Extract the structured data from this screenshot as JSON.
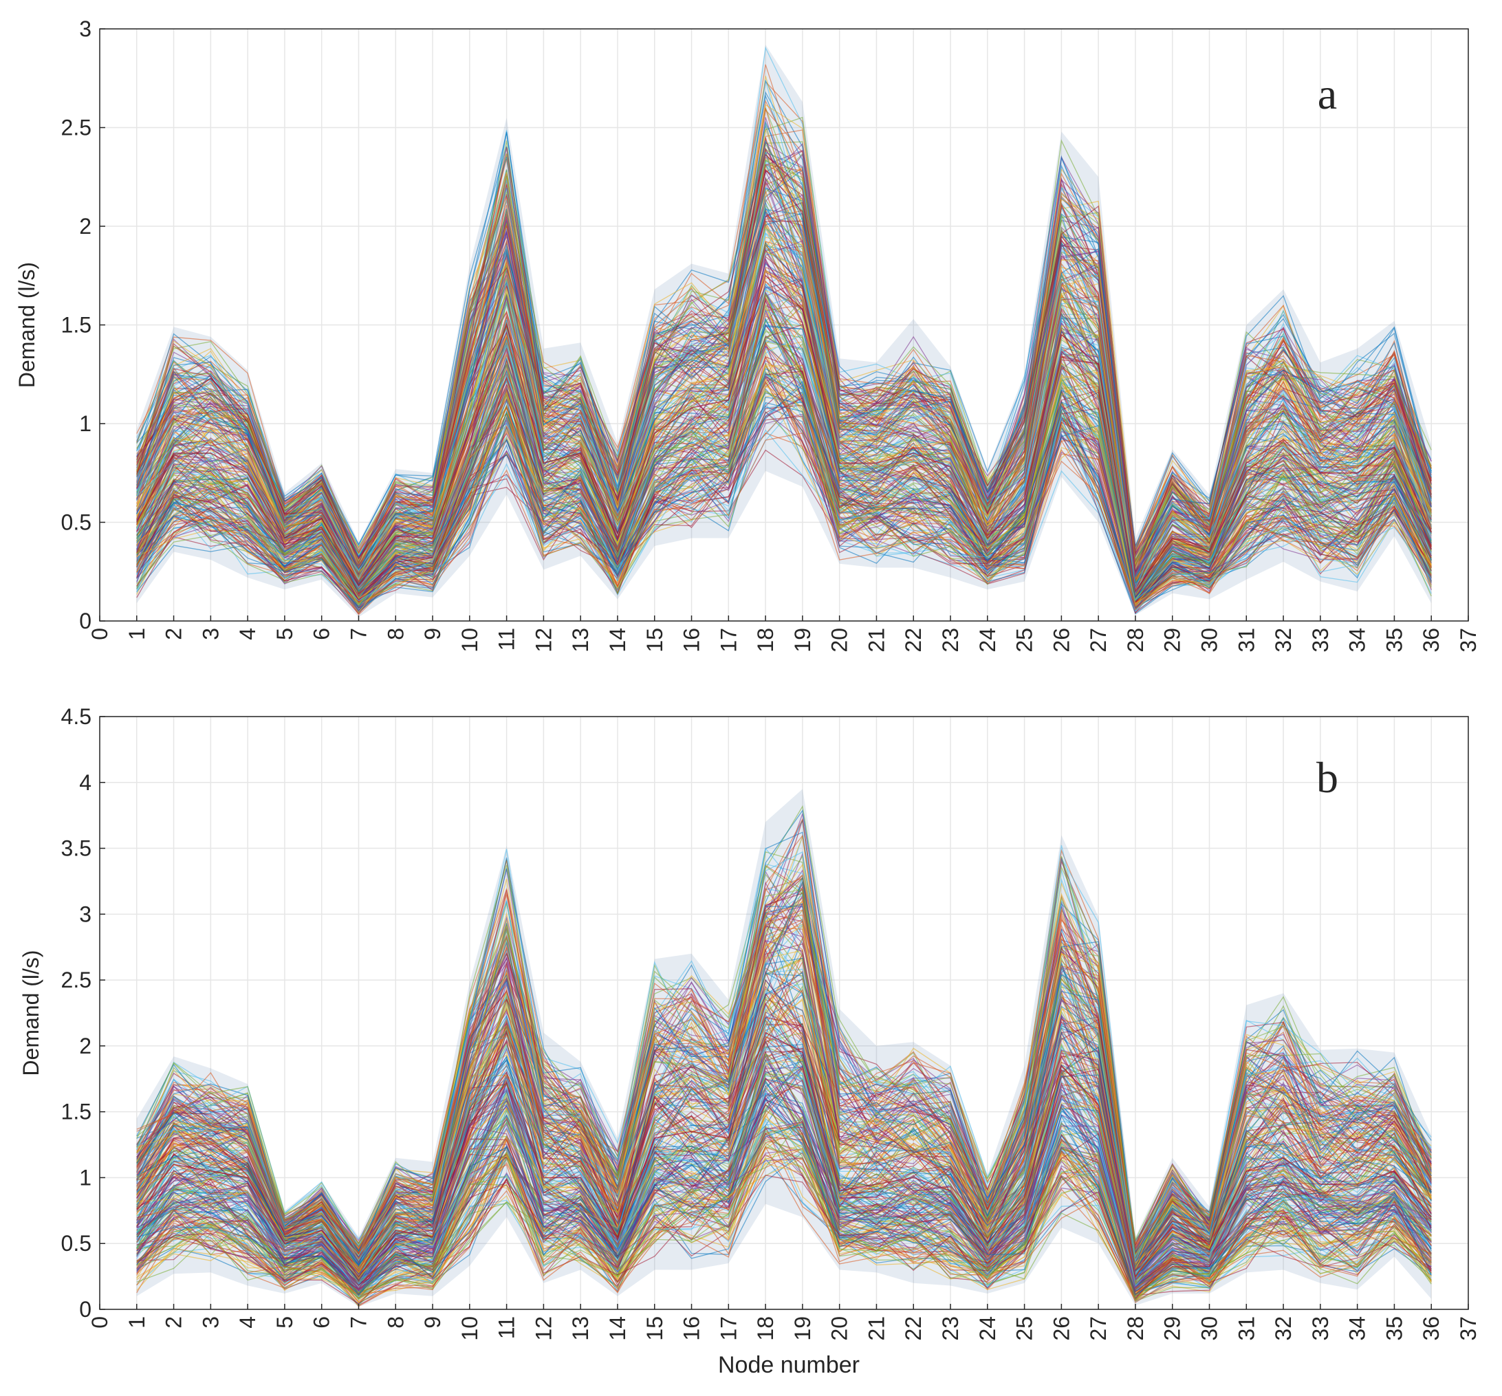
{
  "figure": {
    "xlabel": "Node number"
  },
  "chart_data": [
    {
      "type": "line",
      "panel_label": "a",
      "ylabel": "Demand (l/s)",
      "xlim": [
        0,
        37
      ],
      "ylim": [
        0,
        3
      ],
      "x_ticks": [
        0,
        1,
        2,
        3,
        4,
        5,
        6,
        7,
        8,
        9,
        10,
        11,
        12,
        13,
        14,
        15,
        16,
        17,
        18,
        19,
        20,
        21,
        22,
        23,
        24,
        25,
        26,
        27,
        28,
        29,
        30,
        31,
        32,
        33,
        34,
        35,
        36,
        37
      ],
      "y_ticks": [
        "0",
        "0.5",
        "1",
        "1.5",
        "2",
        "2.5",
        "3"
      ],
      "y_tick_values": [
        0,
        0.5,
        1,
        1.5,
        2,
        2.5,
        3
      ],
      "grid": true,
      "x": [
        1,
        2,
        3,
        4,
        5,
        6,
        7,
        8,
        9,
        10,
        11,
        12,
        13,
        14,
        15,
        16,
        17,
        18,
        19,
        20,
        21,
        22,
        23,
        24,
        25,
        26,
        27,
        28,
        29,
        30,
        31,
        32,
        33,
        34,
        35,
        36
      ],
      "envelope_max": [
        0.97,
        1.49,
        1.44,
        1.27,
        0.65,
        0.8,
        0.4,
        0.77,
        0.75,
        1.8,
        2.55,
        1.38,
        1.41,
        0.9,
        1.68,
        1.81,
        1.76,
        2.92,
        2.63,
        1.33,
        1.31,
        1.53,
        1.29,
        0.77,
        1.25,
        2.48,
        2.25,
        0.42,
        0.87,
        0.64,
        1.5,
        1.68,
        1.31,
        1.38,
        1.52,
        0.89
      ],
      "median": [
        0.5,
        0.85,
        0.85,
        0.75,
        0.42,
        0.52,
        0.18,
        0.43,
        0.42,
        0.98,
        1.5,
        0.8,
        0.85,
        0.42,
        0.95,
        1.08,
        1.12,
        1.75,
        1.58,
        0.8,
        0.8,
        0.85,
        0.78,
        0.42,
        0.62,
        1.45,
        1.3,
        0.15,
        0.42,
        0.35,
        0.8,
        0.92,
        0.75,
        0.75,
        0.88,
        0.45
      ],
      "envelope_min": [
        0.09,
        0.35,
        0.31,
        0.22,
        0.16,
        0.21,
        0.02,
        0.14,
        0.12,
        0.33,
        0.64,
        0.26,
        0.33,
        0.11,
        0.38,
        0.42,
        0.42,
        0.76,
        0.68,
        0.29,
        0.27,
        0.27,
        0.22,
        0.16,
        0.2,
        0.73,
        0.5,
        0.03,
        0.14,
        0.11,
        0.21,
        0.3,
        0.2,
        0.15,
        0.43,
        0.09
      ],
      "series_count_note": "many simulated demand scenarios (multicolored lines)"
    },
    {
      "type": "line",
      "panel_label": "b",
      "ylabel": "Demand (l/s)",
      "xlim": [
        0,
        37
      ],
      "ylim": [
        0,
        4.5
      ],
      "x_ticks": [
        0,
        1,
        2,
        3,
        4,
        5,
        6,
        7,
        8,
        9,
        10,
        11,
        12,
        13,
        14,
        15,
        16,
        17,
        18,
        19,
        20,
        21,
        22,
        23,
        24,
        25,
        26,
        27,
        28,
        29,
        30,
        31,
        32,
        33,
        34,
        35,
        36,
        37
      ],
      "y_ticks": [
        "0",
        "0.5",
        "1",
        "1.5",
        "2",
        "2.5",
        "3",
        "3.5",
        "4",
        "4.5"
      ],
      "y_tick_values": [
        0,
        0.5,
        1,
        1.5,
        2,
        2.5,
        3,
        3.5,
        4,
        4.5
      ],
      "grid": true,
      "x": [
        1,
        2,
        3,
        4,
        5,
        6,
        7,
        8,
        9,
        10,
        11,
        12,
        13,
        14,
        15,
        16,
        17,
        18,
        19,
        20,
        21,
        22,
        23,
        24,
        25,
        26,
        27,
        28,
        29,
        30,
        31,
        32,
        33,
        34,
        35,
        36
      ],
      "envelope_max": [
        1.45,
        1.92,
        1.83,
        1.71,
        0.75,
        0.97,
        0.55,
        1.15,
        1.12,
        2.48,
        3.52,
        2.1,
        1.88,
        1.3,
        2.66,
        2.7,
        2.35,
        3.7,
        3.95,
        2.28,
        2.0,
        2.03,
        1.85,
        1.02,
        1.85,
        3.6,
        2.98,
        0.55,
        1.15,
        0.78,
        2.31,
        2.4,
        1.97,
        1.98,
        1.95,
        1.32
      ],
      "median": [
        0.75,
        1.1,
        1.05,
        1.0,
        0.5,
        0.6,
        0.25,
        0.6,
        0.55,
        1.4,
        1.8,
        1.0,
        1.0,
        0.55,
        1.3,
        1.35,
        1.3,
        2.1,
        1.95,
        0.9,
        0.95,
        1.0,
        0.9,
        0.5,
        0.85,
        1.85,
        1.55,
        0.25,
        0.6,
        0.45,
        1.05,
        1.15,
        0.95,
        0.95,
        1.05,
        0.7
      ],
      "envelope_min": [
        0.1,
        0.27,
        0.28,
        0.18,
        0.12,
        0.2,
        0.02,
        0.12,
        0.1,
        0.33,
        0.7,
        0.2,
        0.3,
        0.1,
        0.3,
        0.3,
        0.35,
        0.8,
        0.7,
        0.3,
        0.28,
        0.2,
        0.18,
        0.12,
        0.2,
        0.62,
        0.5,
        0.03,
        0.12,
        0.12,
        0.28,
        0.3,
        0.2,
        0.15,
        0.4,
        0.08
      ],
      "series_count_note": "many simulated demand scenarios (multicolored lines)"
    }
  ],
  "palette": [
    "#0072BD",
    "#D95319",
    "#EDB120",
    "#7E2F8E",
    "#77AC30",
    "#4DBEEE",
    "#A2142F"
  ]
}
